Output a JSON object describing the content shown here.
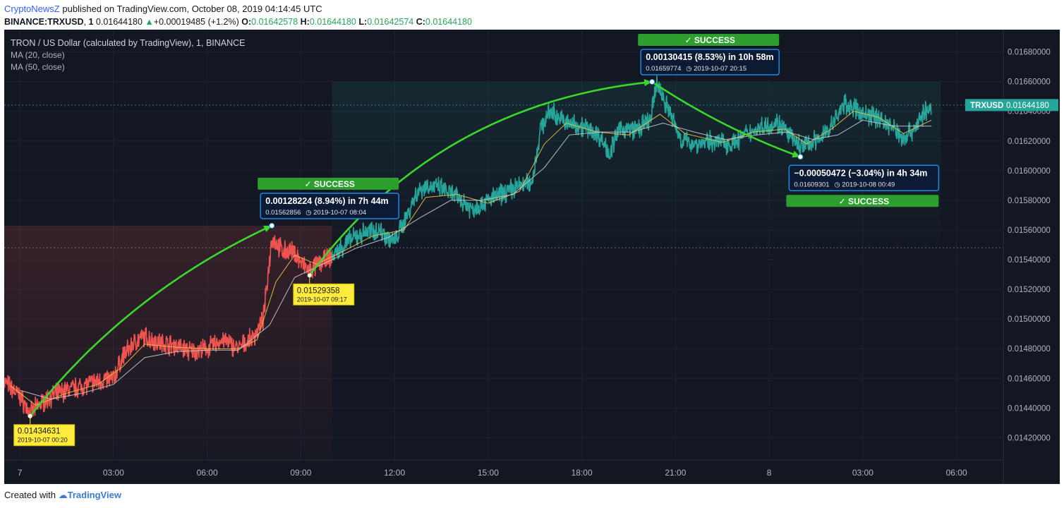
{
  "header": {
    "author": "CryptoNewsZ",
    "published_text": "published on TradingView.com, October 08, 2019 04:14:45 UTC",
    "symbol": "BINANCE:TRXUSD",
    "interval": "1",
    "last": "0.01644180",
    "change": "+0.00019485 (+1.2%)",
    "o_label": "O:",
    "o": "0.01642578",
    "h_label": "H:",
    "h": "0.01644180",
    "l_label": "L:",
    "l": "0.01642574",
    "c_label": "C:",
    "c": "0.01644180"
  },
  "legend": {
    "title": "TRON / US Dollar (calculated by TradingView), 1, BINANCE",
    "ma20": "MA (20, close)",
    "ma50": "MA (50, close)"
  },
  "price_tag": {
    "label": "TRXUSD",
    "value": "0.01644180"
  },
  "footer": {
    "prefix": "Created with",
    "brand": "TradingView"
  },
  "colors": {
    "bg": "#131722",
    "up": "#26a69a",
    "down": "#ef5350",
    "arrow": "#39d92b",
    "callout": "#1e88e5",
    "success": "#2e9e2e",
    "pricebox": "#26a69a",
    "note": "#ffeb3b"
  },
  "chart_data": {
    "type": "line",
    "ylim": [
      0.01405,
      0.01695
    ],
    "xlim_hours": [
      -0.5,
      31.5
    ],
    "x_ticks": [
      {
        "label": "7",
        "h": 0
      },
      {
        "label": "03:00",
        "h": 3
      },
      {
        "label": "06:00",
        "h": 6
      },
      {
        "label": "09:00",
        "h": 9
      },
      {
        "label": "12:00",
        "h": 12
      },
      {
        "label": "15:00",
        "h": 15
      },
      {
        "label": "18:00",
        "h": 18
      },
      {
        "label": "21:00",
        "h": 21
      },
      {
        "label": "8",
        "h": 24
      },
      {
        "label": "03:00",
        "h": 27
      },
      {
        "label": "06:00",
        "h": 30
      }
    ],
    "y_ticks": [
      "0.01420000",
      "0.01440000",
      "0.01460000",
      "0.01480000",
      "0.01500000",
      "0.01520000",
      "0.01540000",
      "0.01560000",
      "0.01580000",
      "0.01600000",
      "0.01620000",
      "0.01640000",
      "0.01660000",
      "0.01680000"
    ],
    "y_tick_values": [
      0.0142,
      0.0144,
      0.0146,
      0.0148,
      0.015,
      0.0152,
      0.0154,
      0.0156,
      0.0158,
      0.016,
      0.0162,
      0.0164,
      0.0166,
      0.0168
    ],
    "series": [
      {
        "color_key": "down",
        "points": [
          [
            -0.5,
            0.01458
          ],
          [
            0,
            0.01448
          ],
          [
            0.33,
            0.01436
          ],
          [
            0.6,
            0.01442
          ],
          [
            1.0,
            0.01448
          ],
          [
            1.5,
            0.01452
          ],
          [
            2.0,
            0.01455
          ],
          [
            2.5,
            0.01458
          ],
          [
            3.0,
            0.0146
          ],
          [
            3.3,
            0.01475
          ],
          [
            3.7,
            0.01485
          ],
          [
            4.0,
            0.01488
          ],
          [
            4.5,
            0.01484
          ],
          [
            5.0,
            0.01482
          ],
          [
            5.5,
            0.01478
          ],
          [
            6.0,
            0.0148
          ],
          [
            6.5,
            0.01486
          ],
          [
            7.0,
            0.0148
          ],
          [
            7.5,
            0.01488
          ],
          [
            7.8,
            0.015
          ],
          [
            8.0,
            0.0154
          ],
          [
            8.07,
            0.01555
          ],
          [
            8.4,
            0.01546
          ],
          [
            8.8,
            0.01545
          ],
          [
            9.0,
            0.01538
          ],
          [
            9.28,
            0.01532
          ],
          [
            9.6,
            0.01538
          ],
          [
            10.0,
            0.01542
          ]
        ]
      },
      {
        "color_key": "up",
        "points": [
          [
            10.0,
            0.01542
          ],
          [
            10.5,
            0.01552
          ],
          [
            11.0,
            0.01558
          ],
          [
            11.5,
            0.0156
          ],
          [
            12.0,
            0.01552
          ],
          [
            12.3,
            0.01565
          ],
          [
            12.7,
            0.01585
          ],
          [
            13.0,
            0.0159
          ],
          [
            13.5,
            0.01588
          ],
          [
            14.0,
            0.01582
          ],
          [
            14.5,
            0.01574
          ],
          [
            15.0,
            0.0158
          ],
          [
            15.5,
            0.01585
          ],
          [
            16.0,
            0.0159
          ],
          [
            16.4,
            0.01592
          ],
          [
            16.7,
            0.0163
          ],
          [
            17.0,
            0.0164
          ],
          [
            17.5,
            0.01632
          ],
          [
            18.0,
            0.0163
          ],
          [
            18.5,
            0.01625
          ],
          [
            18.9,
            0.01612
          ],
          [
            19.2,
            0.01628
          ],
          [
            19.8,
            0.01628
          ],
          [
            20.2,
            0.01634
          ],
          [
            20.4,
            0.01659
          ],
          [
            20.8,
            0.0164
          ],
          [
            21.2,
            0.0162
          ],
          [
            21.7,
            0.01618
          ],
          [
            22.2,
            0.0162
          ],
          [
            22.8,
            0.01618
          ],
          [
            23.3,
            0.01625
          ],
          [
            23.8,
            0.0163
          ],
          [
            24.3,
            0.01632
          ],
          [
            24.8,
            0.0162
          ],
          [
            25.0,
            0.01616
          ],
          [
            25.5,
            0.0162
          ],
          [
            26.0,
            0.0163
          ],
          [
            26.4,
            0.01645
          ],
          [
            26.7,
            0.01642
          ],
          [
            27.0,
            0.01638
          ],
          [
            27.5,
            0.01636
          ],
          [
            28.0,
            0.01628
          ],
          [
            28.3,
            0.01622
          ],
          [
            28.7,
            0.0163
          ],
          [
            29.0,
            0.0164
          ],
          [
            29.2,
            0.0164
          ]
        ]
      }
    ],
    "ma20_points": [
      [
        -0.3,
        0.01455
      ],
      [
        0.5,
        0.01442
      ],
      [
        1.5,
        0.0145
      ],
      [
        2.5,
        0.01456
      ],
      [
        3.3,
        0.01468
      ],
      [
        4.0,
        0.01483
      ],
      [
        5.0,
        0.01481
      ],
      [
        6.0,
        0.0148
      ],
      [
        7.0,
        0.0148
      ],
      [
        7.6,
        0.01486
      ],
      [
        8.2,
        0.01525
      ],
      [
        8.8,
        0.01543
      ],
      [
        9.5,
        0.01537
      ],
      [
        10.3,
        0.01545
      ],
      [
        11.3,
        0.01556
      ],
      [
        12.3,
        0.0156
      ],
      [
        13.0,
        0.01582
      ],
      [
        14.0,
        0.01584
      ],
      [
        15.0,
        0.01578
      ],
      [
        16.0,
        0.01586
      ],
      [
        16.8,
        0.01618
      ],
      [
        17.5,
        0.01632
      ],
      [
        18.5,
        0.01626
      ],
      [
        19.5,
        0.01624
      ],
      [
        20.5,
        0.01638
      ],
      [
        21.3,
        0.01625
      ],
      [
        22.5,
        0.01619
      ],
      [
        23.5,
        0.01626
      ],
      [
        24.5,
        0.01628
      ],
      [
        25.2,
        0.01618
      ],
      [
        26.0,
        0.01628
      ],
      [
        26.7,
        0.0164
      ],
      [
        27.5,
        0.01636
      ],
      [
        28.3,
        0.01625
      ],
      [
        29.2,
        0.01634
      ]
    ],
    "ma50_points": [
      [
        0.0,
        0.01452
      ],
      [
        1.0,
        0.01446
      ],
      [
        2.0,
        0.0145
      ],
      [
        3.0,
        0.01456
      ],
      [
        4.0,
        0.01474
      ],
      [
        5.0,
        0.01478
      ],
      [
        6.0,
        0.01479
      ],
      [
        7.0,
        0.01479
      ],
      [
        8.0,
        0.01496
      ],
      [
        8.8,
        0.01528
      ],
      [
        9.8,
        0.01538
      ],
      [
        10.8,
        0.01548
      ],
      [
        11.8,
        0.01555
      ],
      [
        12.8,
        0.01568
      ],
      [
        13.8,
        0.0158
      ],
      [
        14.8,
        0.0158
      ],
      [
        15.8,
        0.01584
      ],
      [
        16.8,
        0.01602
      ],
      [
        17.6,
        0.01624
      ],
      [
        18.6,
        0.01626
      ],
      [
        19.6,
        0.01626
      ],
      [
        20.6,
        0.01632
      ],
      [
        21.6,
        0.01626
      ],
      [
        22.6,
        0.01621
      ],
      [
        23.6,
        0.01624
      ],
      [
        24.6,
        0.01626
      ],
      [
        25.4,
        0.01621
      ],
      [
        26.2,
        0.01624
      ],
      [
        27.0,
        0.01634
      ],
      [
        28.0,
        0.0163
      ],
      [
        29.2,
        0.0163
      ]
    ],
    "arrows": [
      {
        "from": [
          0.33,
          0.014346
        ],
        "to": [
          8.07,
          0.015629
        ],
        "curve": 0.12
      },
      {
        "from": [
          9.28,
          0.015294
        ],
        "to": [
          20.25,
          0.016598
        ],
        "curve": 0.22
      },
      {
        "from": [
          20.25,
          0.016598
        ],
        "to": [
          25.0,
          0.016093
        ],
        "curve": -0.06
      }
    ],
    "levels": [
      0.0164418,
      0.01548
    ],
    "callouts": [
      {
        "anchor": [
          8.07,
          0.015629
        ],
        "side": "above",
        "title": "0.00128224 (8.94%) in 7h 44m",
        "price": "0.01562856",
        "date": "2019-10-07  08:04",
        "badge": "✓ SUCCESS",
        "badge_pos": "top"
      },
      {
        "anchor": [
          20.25,
          0.016598
        ],
        "side": "above",
        "title": "0.00130415 (8.53%) in 10h 58m",
        "price": "0.01659774",
        "date": "2019-10-07  20:15",
        "badge": "✓ SUCCESS",
        "badge_pos": "top"
      },
      {
        "anchor": [
          25.0,
          0.016093
        ],
        "side": "below",
        "title": "−0.00050472 (−3.04%) in 4h 34m",
        "price": "0.01609301",
        "date": "2019-10-08  00:49",
        "badge": "✓ SUCCESS",
        "badge_pos": "bottom"
      }
    ],
    "notes": [
      {
        "anchor": [
          0.33,
          0.014346
        ],
        "value": "0.01434631",
        "date": "2019-10-07 00:20"
      },
      {
        "anchor": [
          9.28,
          0.015294
        ],
        "value": "0.01529358",
        "date": "2019-10-07 09:17"
      }
    ]
  }
}
